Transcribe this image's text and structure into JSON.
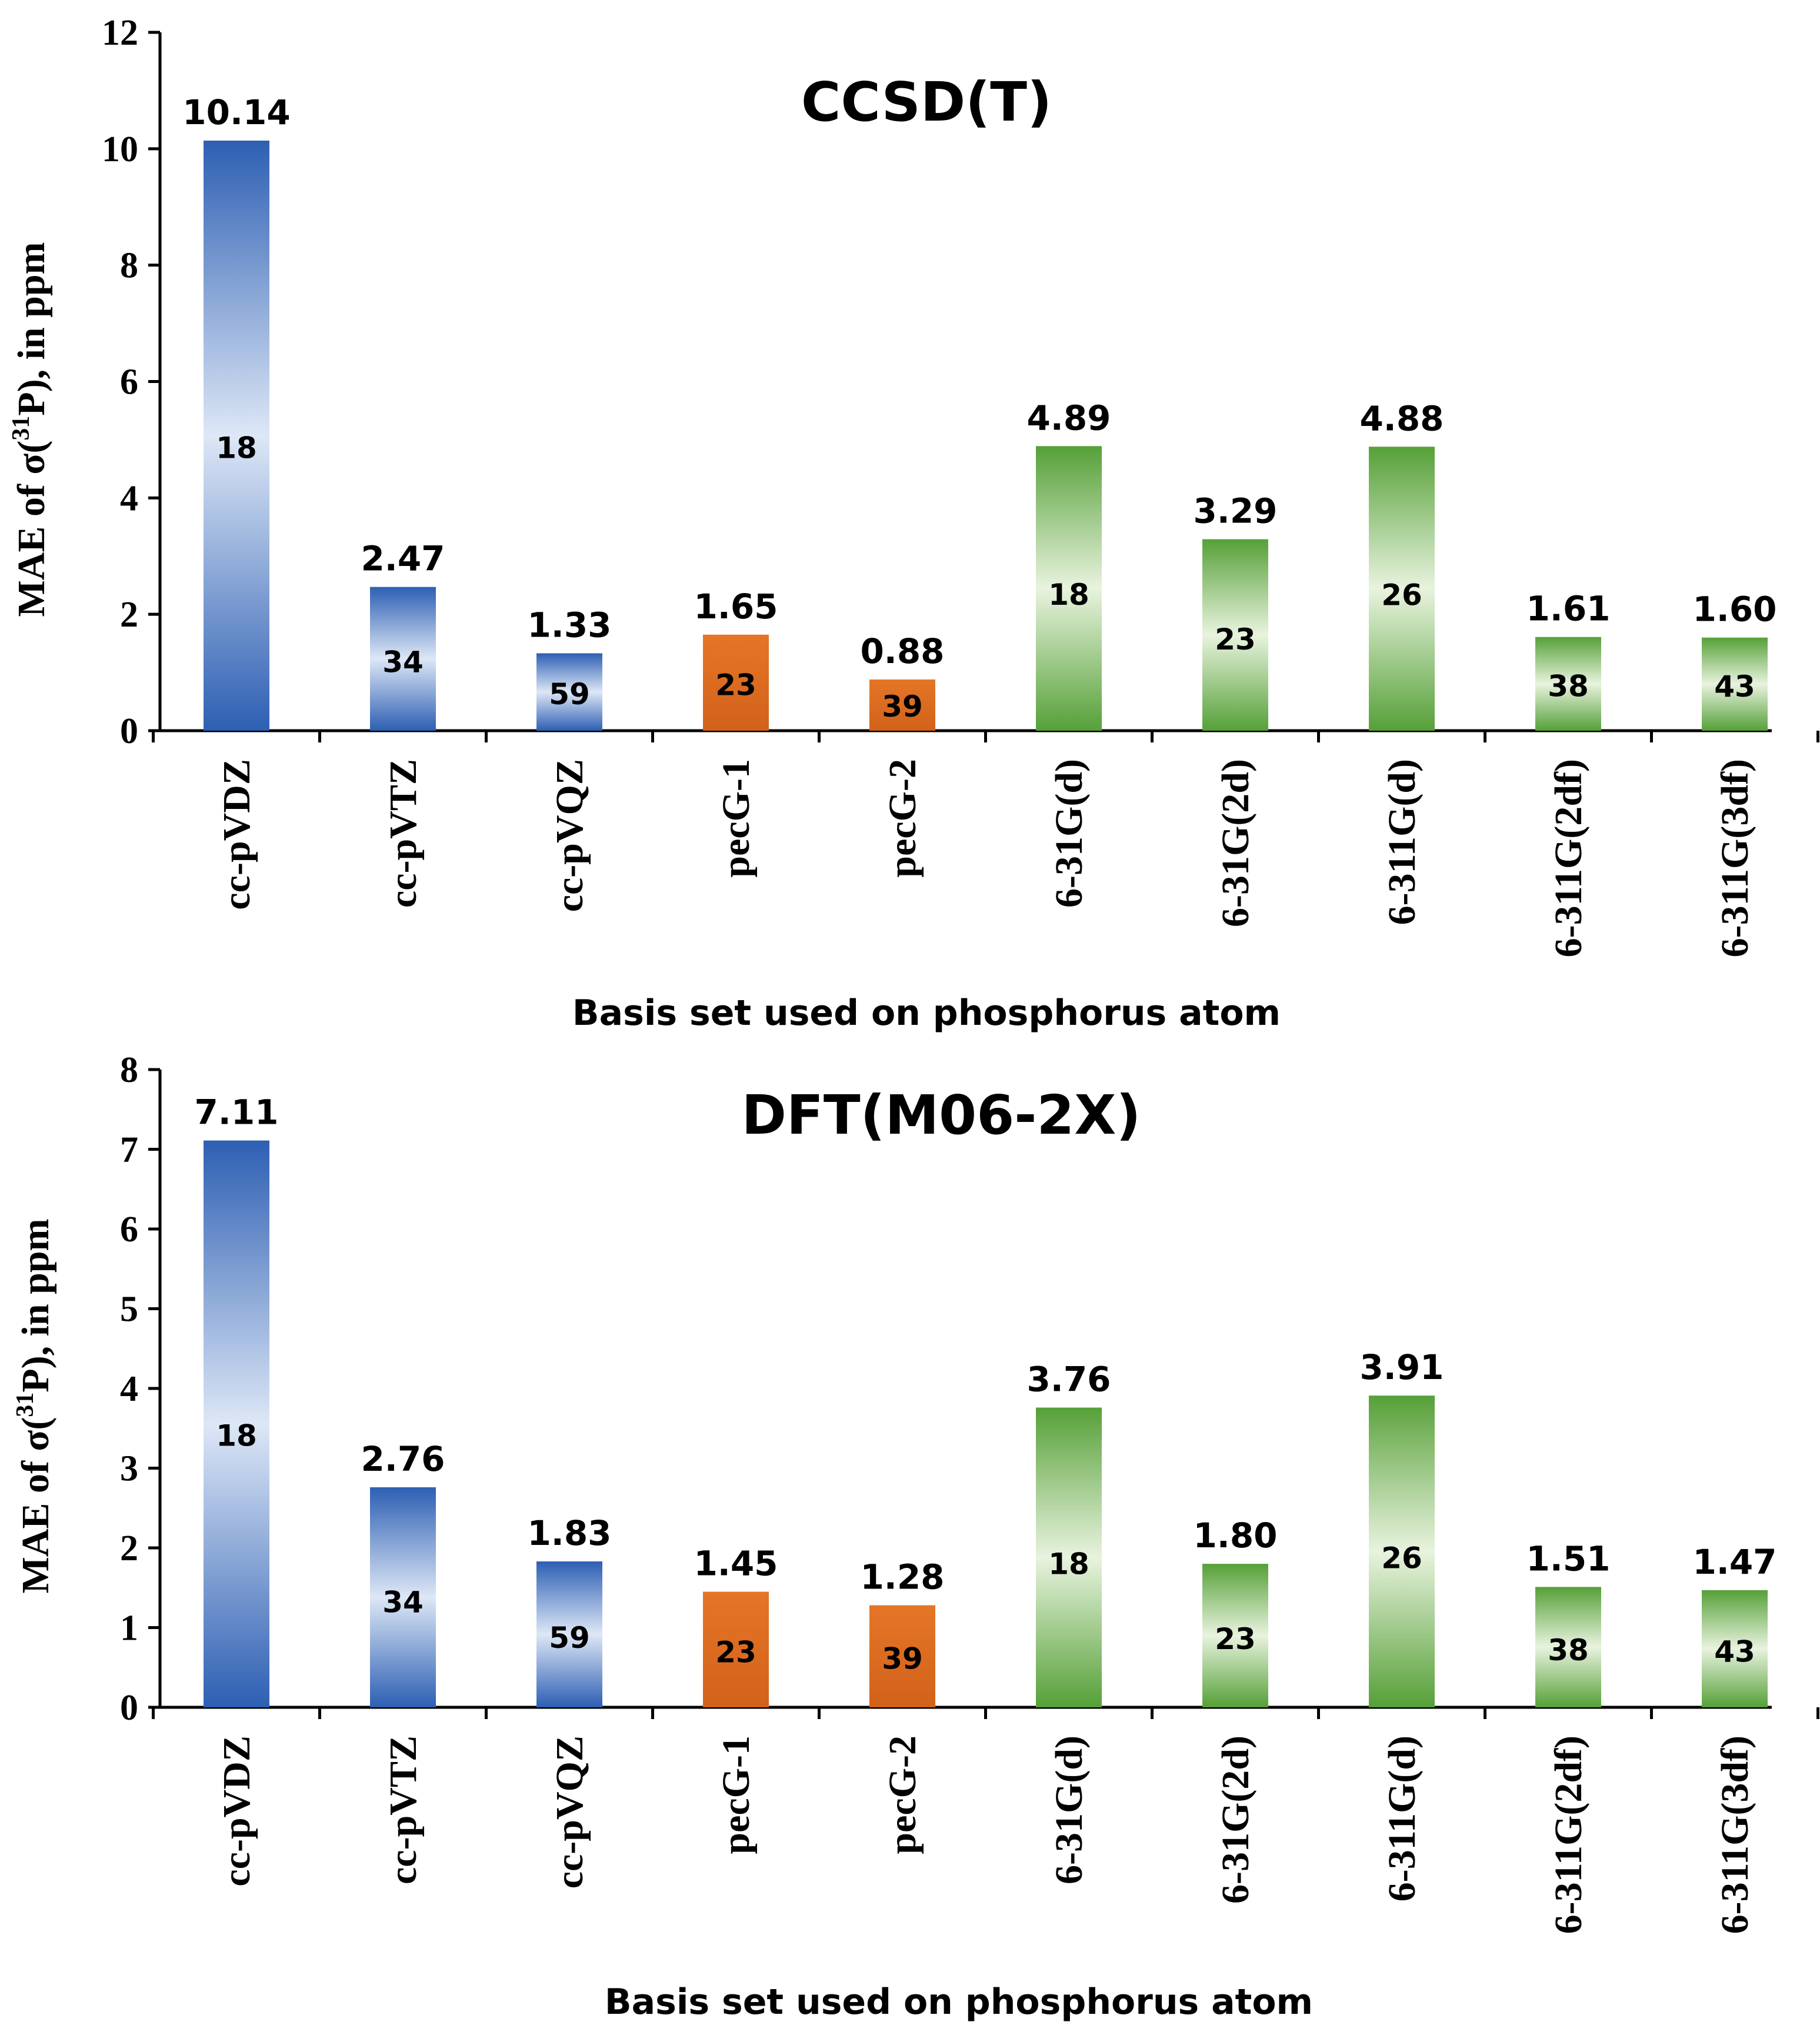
{
  "colors": {
    "blue_dark": "#2f62b8",
    "blue_light": "#dbe6f7",
    "orange": "#e07020",
    "orange_dark": "#c85a14",
    "green_dark": "#58a03a",
    "green_light": "#e6f2dc"
  },
  "chart_data": [
    {
      "type": "bar",
      "title": "CCSD(T)",
      "xlabel": "Basis set used on phosphorus atom",
      "ylabel": {
        "prefix": "MAE of σ(",
        "sup": "31",
        "suffix": "P), in ppm"
      },
      "ylim": [
        0,
        12
      ],
      "yticks": [
        0,
        2,
        4,
        6,
        8,
        10,
        12
      ],
      "categories": [
        "cc-pVDZ",
        "cc-pVTZ",
        "cc-pVQZ",
        "pecG-1",
        "pecG-2",
        "6-31G(d)",
        "6-31G(2d)",
        "6-311G(d)",
        "6-311G(2df)",
        "6-311G(3df)"
      ],
      "values": [
        10.14,
        2.47,
        1.33,
        1.65,
        0.88,
        4.89,
        3.29,
        4.88,
        1.61,
        1.6
      ],
      "value_labels": [
        "10.14",
        "2.47",
        "1.33",
        "1.65",
        "0.88",
        "4.89",
        "3.29",
        "4.88",
        "1.61",
        "1.60"
      ],
      "inner_labels": [
        "18",
        "34",
        "59",
        "23",
        "39",
        "18",
        "23",
        "26",
        "38",
        "43"
      ],
      "groups": [
        "blue",
        "blue",
        "blue",
        "orange",
        "orange",
        "green",
        "green",
        "green",
        "green",
        "green"
      ],
      "grid": false
    },
    {
      "type": "bar",
      "title": "DFT(M06-2X)",
      "xlabel": "Basis set used on phosphorus atom",
      "ylabel": {
        "prefix": "MAE of σ(",
        "sup": "31",
        "suffix": "P), in ppm"
      },
      "ylim": [
        0,
        8
      ],
      "yticks": [
        0,
        1,
        2,
        3,
        4,
        5,
        6,
        7,
        8
      ],
      "categories": [
        "cc-pVDZ",
        "cc-pVTZ",
        "cc-pVQZ",
        "pecG-1",
        "pecG-2",
        "6-31G(d)",
        "6-31G(2d)",
        "6-311G(d)",
        "6-311G(2df)",
        "6-311G(3df)"
      ],
      "values": [
        7.11,
        2.76,
        1.83,
        1.45,
        1.28,
        3.76,
        1.8,
        3.91,
        1.51,
        1.47
      ],
      "value_labels": [
        "7.11",
        "2.76",
        "1.83",
        "1.45",
        "1.28",
        "3.76",
        "1.80",
        "3.91",
        "1.51",
        "1.47"
      ],
      "inner_labels": [
        "18",
        "34",
        "59",
        "23",
        "39",
        "18",
        "23",
        "26",
        "38",
        "43"
      ],
      "groups": [
        "blue",
        "blue",
        "blue",
        "orange",
        "orange",
        "green",
        "green",
        "green",
        "green",
        "green"
      ],
      "grid": false
    }
  ]
}
